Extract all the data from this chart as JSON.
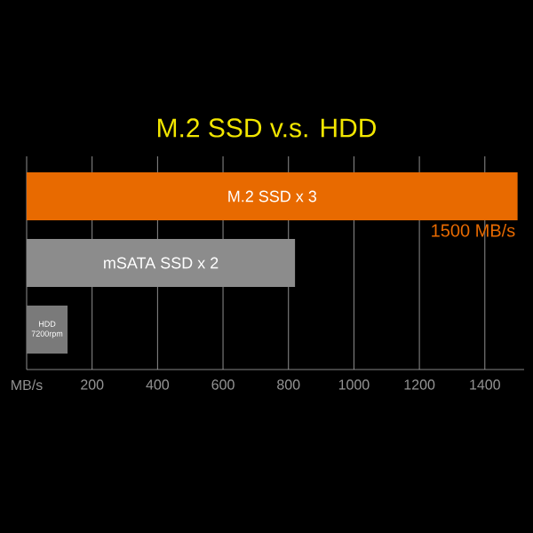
{
  "chart_data": {
    "type": "bar",
    "orientation": "horizontal",
    "title": "M.2 SSD v.s. HDD",
    "categories": [
      "M.2 SSD x 3",
      "mSATA SSD x 2",
      "HDD 7200rpm"
    ],
    "values": [
      1500,
      820,
      125
    ],
    "colors": [
      "#e86a00",
      "#8c8c8c",
      "#7a7a7a"
    ],
    "value_labels": [
      "1500 MB/s",
      null,
      null
    ],
    "xlim": [
      0,
      1520
    ],
    "xticks": [
      {
        "value": 0,
        "label": "MB/s"
      },
      200,
      400,
      600,
      800,
      1000,
      1200,
      1400
    ],
    "grid": "x",
    "tick_labels": "x"
  }
}
